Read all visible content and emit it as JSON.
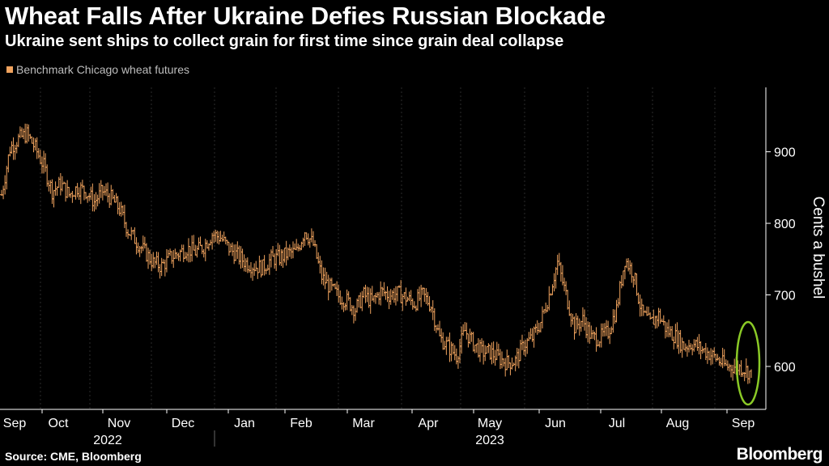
{
  "header": {
    "title": "Wheat Falls After Ukraine Defies Russian Blockade",
    "subtitle": "Ukraine sent ships to collect grain for first time since grain deal collapse"
  },
  "footer": {
    "source": "Source: CME, Bloomberg",
    "brand": "Bloomberg"
  },
  "colors": {
    "background": "#000000",
    "series": "#f0a35e",
    "highlight": "#8ac926",
    "axis": "#ffffff",
    "legend_text": "#bdbdbd"
  },
  "chart_data": {
    "type": "ohlc",
    "title": "Wheat Falls After Ukraine Defies Russian Blockade",
    "ylabel": "Cents a bushel",
    "ylim": [
      540,
      990
    ],
    "yticks": [
      600,
      700,
      800,
      900
    ],
    "series": [
      {
        "name": "Benchmark Chicago wheat futures",
        "granularity": "weekly-approx",
        "values": [
          840,
          905,
          918,
          925,
          905,
          880,
          845,
          855,
          840,
          850,
          845,
          830,
          845,
          835,
          820,
          790,
          775,
          760,
          745,
          740,
          752,
          758,
          765,
          760,
          768,
          785,
          780,
          765,
          755,
          745,
          740,
          738,
          750,
          752,
          758,
          760,
          790,
          770,
          725,
          710,
          698,
          692,
          680,
          700,
          690,
          705,
          700,
          702,
          696,
          688,
          700,
          685,
          640,
          628,
          615,
          650,
          632,
          620,
          620,
          612,
          605,
          608,
          630,
          640,
          662,
          700,
          745,
          700,
          655,
          665,
          640,
          640,
          648,
          680,
          750,
          730,
          675,
          660,
          672,
          650,
          642,
          628,
          632,
          625,
          618,
          610,
          600,
          600,
          598,
          590
        ]
      }
    ],
    "x_axis": {
      "months": [
        "Sep",
        "Oct",
        "Nov",
        "Dec",
        "Jan",
        "Feb",
        "Mar",
        "Apr",
        "May",
        "Jun",
        "Jul",
        "Aug",
        "Sep"
      ],
      "years": [
        "2022",
        "2023"
      ]
    },
    "annotations": [
      {
        "type": "ellipse",
        "target": "latest values",
        "color": "#8ac926"
      }
    ]
  }
}
